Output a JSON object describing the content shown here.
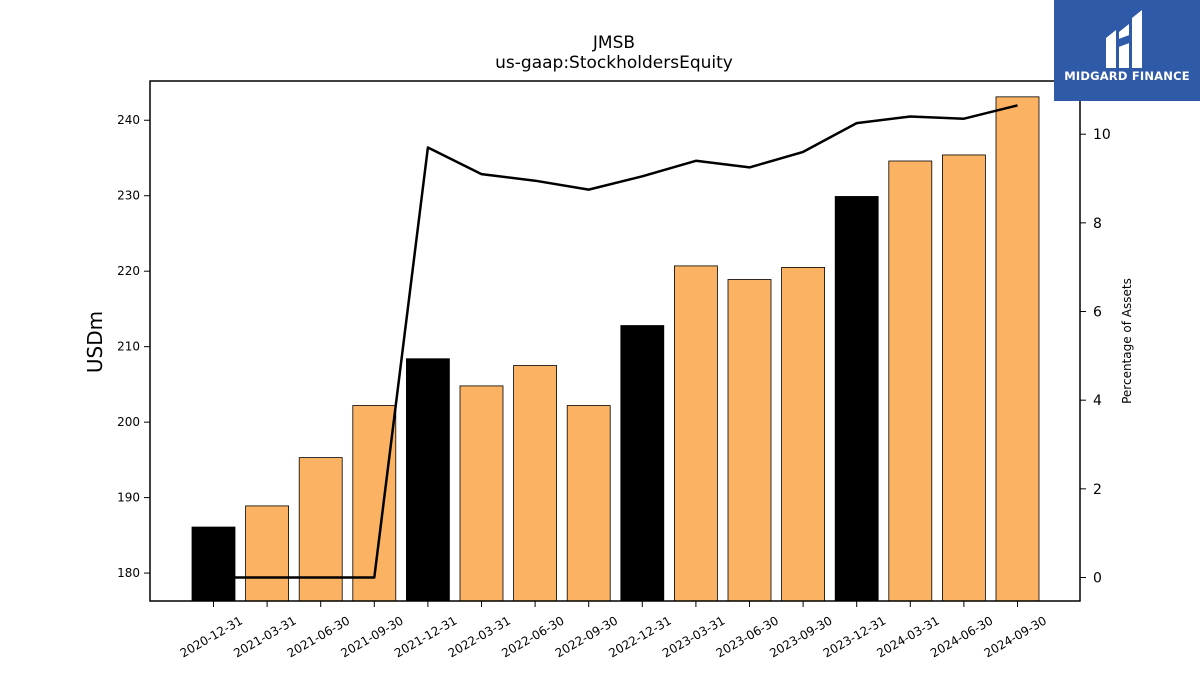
{
  "chart_data": {
    "type": "bar",
    "title": "JMSB",
    "subtitle": "us-gaap:StockholdersEquity",
    "ylabel": "USDm",
    "y2label": "Percentage of Assets",
    "categories": [
      "2020-12-31",
      "2021-03-31",
      "2021-06-30",
      "2021-09-30",
      "2021-12-31",
      "2022-03-31",
      "2022-06-30",
      "2022-09-30",
      "2022-12-31",
      "2023-03-31",
      "2023-06-30",
      "2023-09-30",
      "2023-12-31",
      "2024-03-31",
      "2024-06-30",
      "2024-09-30"
    ],
    "series": [
      {
        "values": [
          186.1,
          188.9,
          195.3,
          202.2,
          208.4,
          204.8,
          207.5,
          202.2,
          212.8,
          220.7,
          218.9,
          220.5,
          229.9,
          234.6,
          235.4,
          243.1
        ]
      },
      {
        "values": [
          0,
          0,
          0,
          0,
          9.7,
          9.1,
          8.95,
          8.75,
          9.05,
          9.4,
          9.25,
          9.6,
          10.25,
          10.4,
          10.35,
          10.65
        ]
      }
    ],
    "highlight_categories": [
      "2020-12-31",
      "2021-12-31",
      "2022-12-31",
      "2023-12-31"
    ],
    "ylim": [
      176.3,
      245.2
    ],
    "yticks": [
      180,
      190,
      200,
      210,
      220,
      230,
      240
    ],
    "y2lim": [
      -0.53,
      11.2
    ],
    "y2ticks": [
      0,
      2,
      4,
      6,
      8,
      10
    ],
    "grid": false,
    "colors": {
      "bar": "#fbb363",
      "bar_highlight": "#000000",
      "line": "#000000"
    }
  },
  "logo": {
    "text": "MIDGARD FINANCE",
    "background": "#2f5aa8"
  }
}
